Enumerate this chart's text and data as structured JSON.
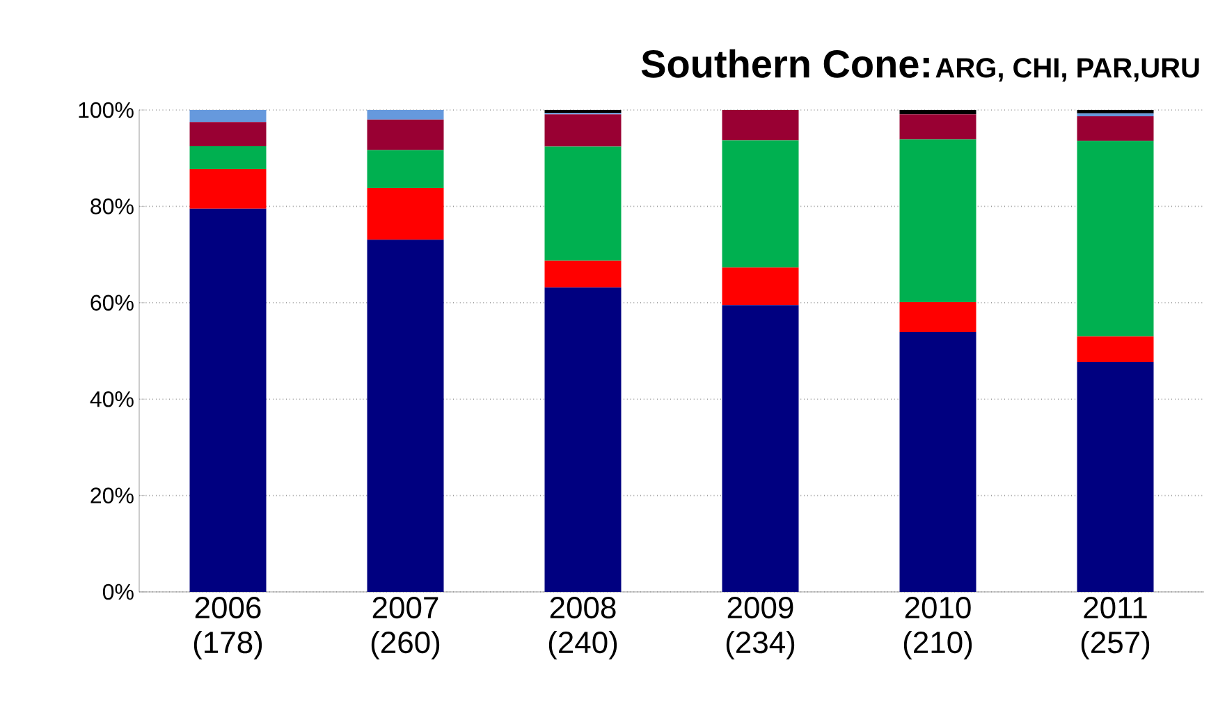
{
  "chart_data": {
    "type": "bar",
    "stacked": true,
    "title": "Southern Cone:",
    "subtitle": "ARG, CHI, PAR,URU",
    "categories": [
      "2006 (178)",
      "2007 (260)",
      "2008 (240)",
      "2009 (234)",
      "2010 (210)",
      "2011 (257)"
    ],
    "series": [
      {
        "color": "#000080",
        "values": [
          79.5,
          73.1,
          63.2,
          59.5,
          53.9,
          47.7
        ]
      },
      {
        "color": "#ff0000",
        "values": [
          8.2,
          10.7,
          5.5,
          7.8,
          6.2,
          5.3
        ]
      },
      {
        "color": "#00b050",
        "values": [
          4.8,
          7.9,
          23.7,
          26.4,
          33.8,
          40.6
        ]
      },
      {
        "color": "#990033",
        "values": [
          5.0,
          6.3,
          6.7,
          6.3,
          5.2,
          5.1
        ]
      },
      {
        "color": "#6699dd",
        "values": [
          2.5,
          2.0,
          0.3,
          0,
          0,
          0.6
        ]
      },
      {
        "color": "#000000",
        "values": [
          0,
          0,
          0.6,
          0,
          1.0,
          0.7
        ]
      }
    ],
    "ylim": [
      0,
      100
    ],
    "yticks": [
      {
        "value": 0,
        "label": "0%"
      },
      {
        "value": 20,
        "label": "20%"
      },
      {
        "value": 40,
        "label": "40%"
      },
      {
        "value": 60,
        "label": "60%"
      },
      {
        "value": 80,
        "label": "80%"
      },
      {
        "value": 100,
        "label": "100%"
      }
    ],
    "grid": "y"
  }
}
